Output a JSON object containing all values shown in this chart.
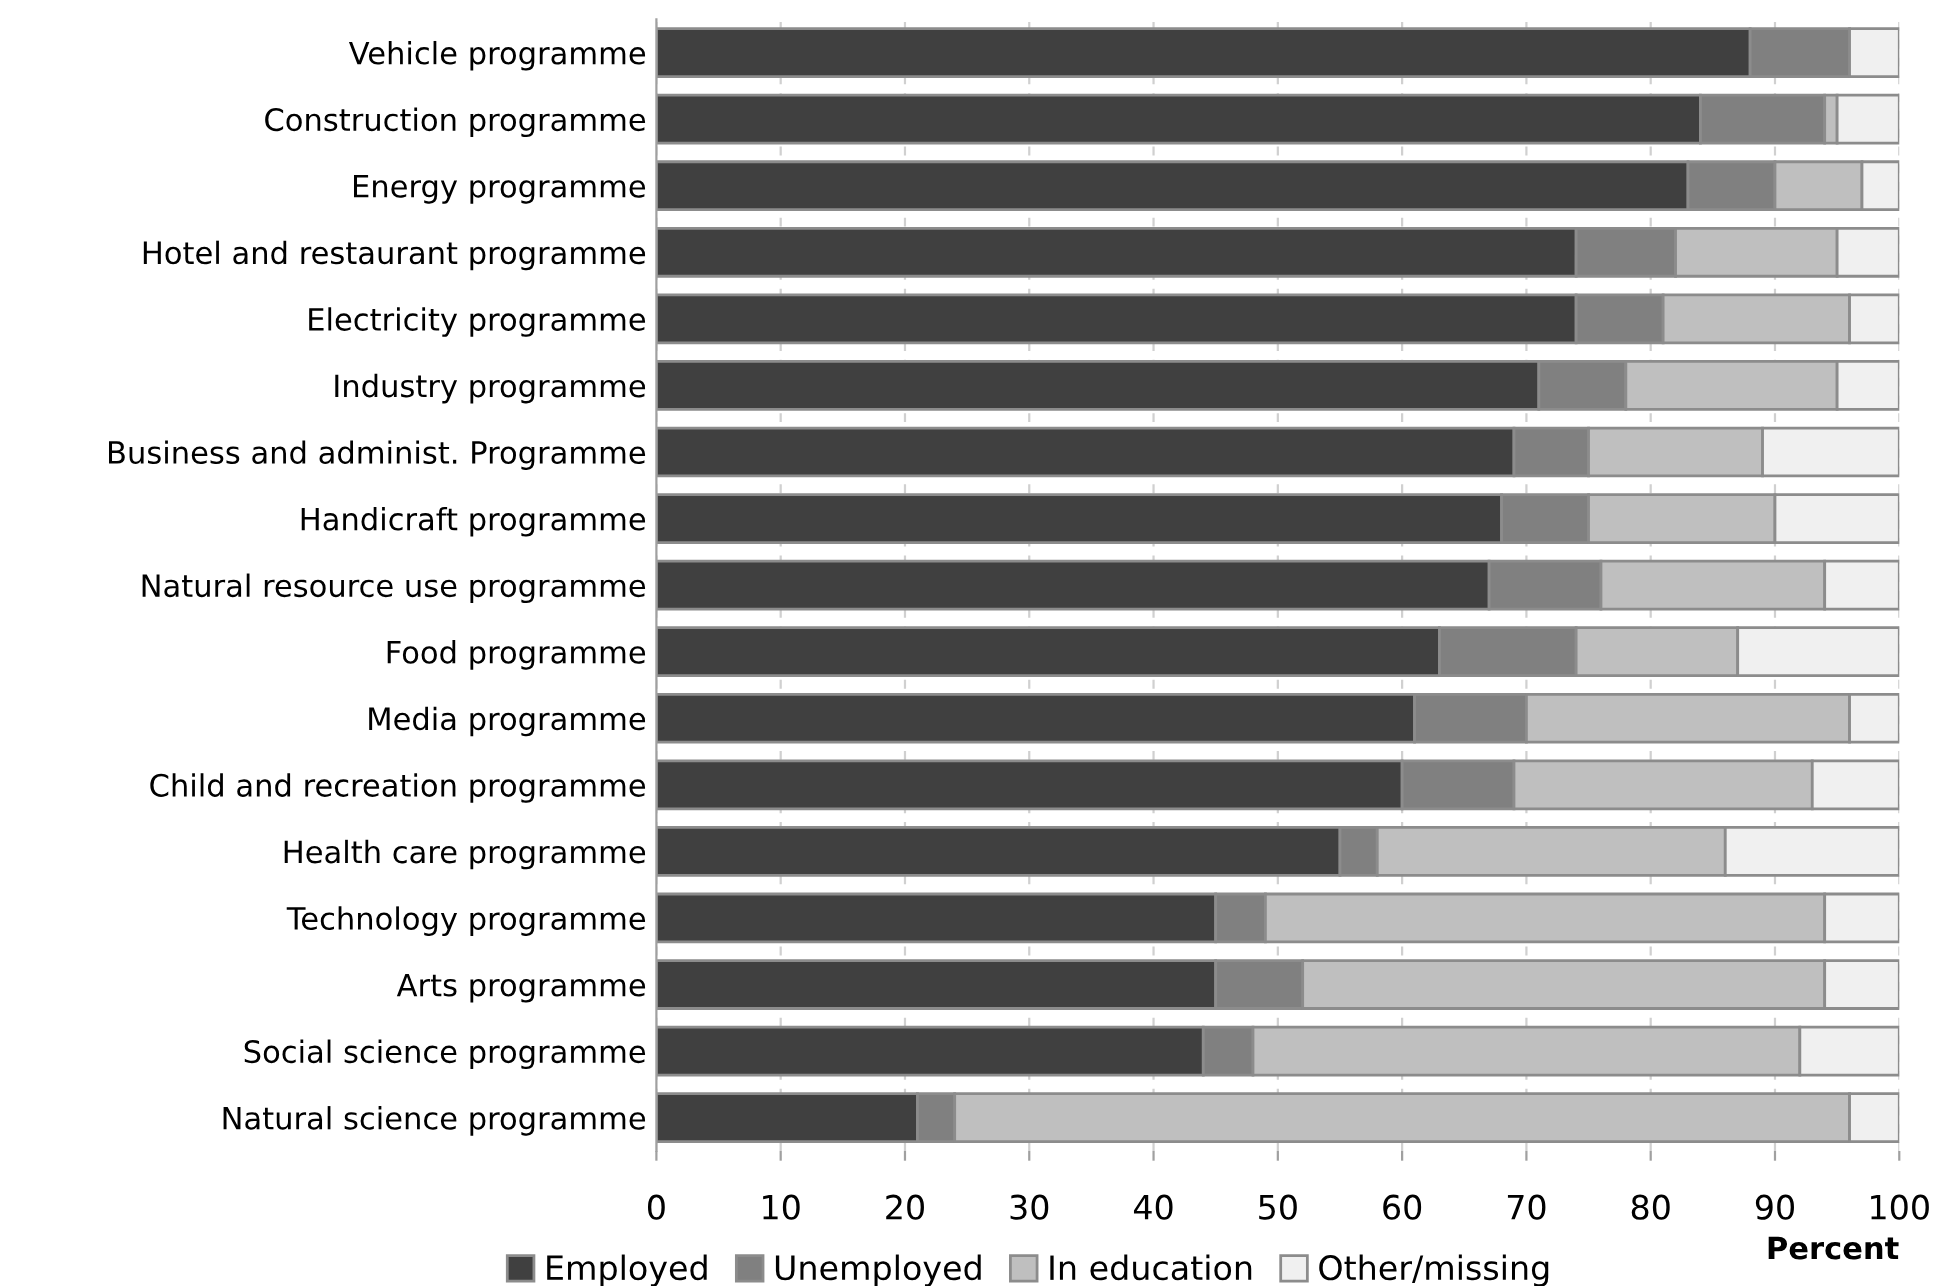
{
  "chart_data": {
    "type": "bar",
    "orientation": "horizontal",
    "stacked": true,
    "categories": [
      "Vehicle programme",
      "Construction programme",
      "Energy programme",
      "Hotel and restaurant programme",
      "Electricity programme",
      "Industry programme",
      "Business and administ. Programme",
      "Handicraft programme",
      "Natural resource use programme",
      "Food programme",
      "Media programme",
      "Child and recreation programme",
      "Health care programme",
      "Technology programme",
      "Arts programme",
      "Social science programme",
      "Natural science programme"
    ],
    "series": [
      {
        "name": "Employed",
        "color": "#404040",
        "values": [
          88,
          84,
          83,
          74,
          74,
          71,
          69,
          68,
          67,
          63,
          61,
          60,
          55,
          45,
          45,
          44,
          21
        ]
      },
      {
        "name": "Unemployed",
        "color": "#808080",
        "values": [
          8,
          10,
          7,
          8,
          7,
          7,
          6,
          7,
          9,
          11,
          9,
          9,
          3,
          4,
          7,
          4,
          3
        ]
      },
      {
        "name": "In education",
        "color": "#bfbfbf",
        "values": [
          0,
          1,
          7,
          13,
          15,
          17,
          14,
          15,
          18,
          13,
          26,
          24,
          28,
          45,
          42,
          44,
          72
        ]
      },
      {
        "name": "Other/missing",
        "color": "#f0f0f0",
        "values": [
          4,
          5,
          3,
          5,
          4,
          5,
          11,
          10,
          6,
          13,
          4,
          7,
          14,
          6,
          6,
          8,
          4
        ]
      }
    ],
    "xlim": [
      0,
      100
    ],
    "xticks": [
      0,
      10,
      20,
      30,
      40,
      50,
      60,
      70,
      80,
      90,
      100
    ],
    "xlabel": "Percent",
    "grid": "x",
    "legend": "bottom"
  }
}
